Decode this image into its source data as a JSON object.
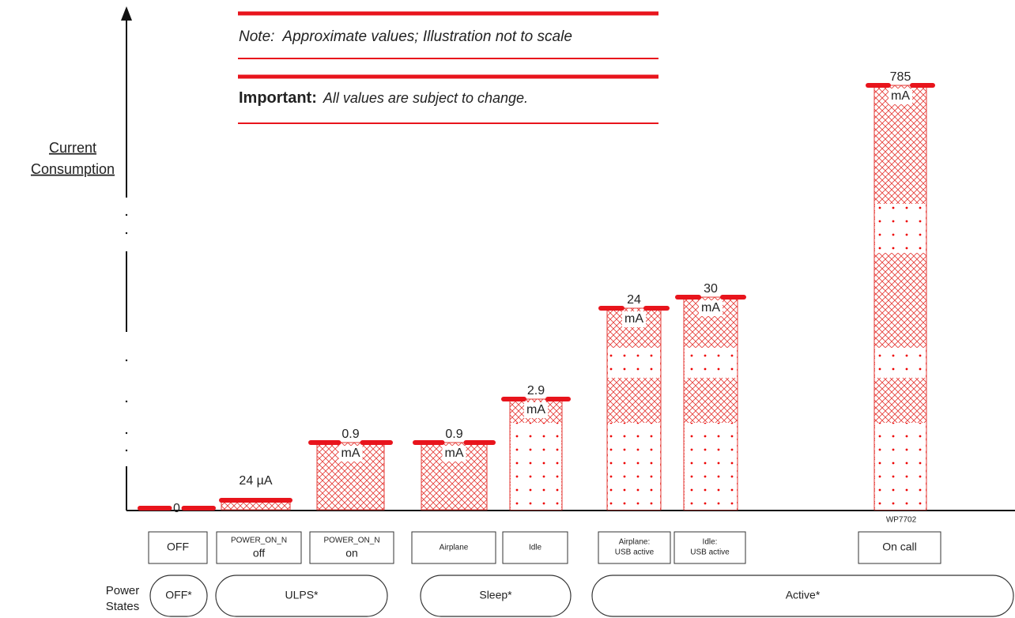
{
  "notes": {
    "note_label": "Note:",
    "note_text": "Approximate values; Illustration not to scale",
    "important_label": "Important:",
    "important_text": "All values are subject to change."
  },
  "y_axis_label": [
    "Current",
    "Consumption"
  ],
  "bars": [
    {
      "label": [
        "0"
      ]
    },
    {
      "label": [
        "24 µA"
      ]
    },
    {
      "label": [
        "0.9",
        "mA"
      ]
    },
    {
      "label": [
        "0.9",
        "mA"
      ]
    },
    {
      "label": [
        "2.9",
        "mA"
      ]
    },
    {
      "label": [
        "24",
        "mA"
      ]
    },
    {
      "label": [
        "30",
        "mA"
      ]
    },
    {
      "label": [
        "785",
        "mA"
      ]
    }
  ],
  "modes": [
    {
      "lines": [
        "OFF"
      ]
    },
    {
      "lines": [
        "POWER_ON_N",
        "off"
      ]
    },
    {
      "lines": [
        "POWER_ON_N",
        "on"
      ]
    },
    {
      "lines": [
        "Airplane"
      ]
    },
    {
      "lines": [
        "Idle"
      ]
    },
    {
      "lines": [
        "Airplane:",
        "USB active"
      ]
    },
    {
      "lines": [
        "Idle:",
        "USB active"
      ]
    },
    {
      "lines": [
        "On call"
      ]
    }
  ],
  "part_number": "WP7702",
  "power_states_label": [
    "Power",
    "States"
  ],
  "states": [
    "OFF*",
    "ULPS*",
    "Sleep*",
    "Active*"
  ]
}
